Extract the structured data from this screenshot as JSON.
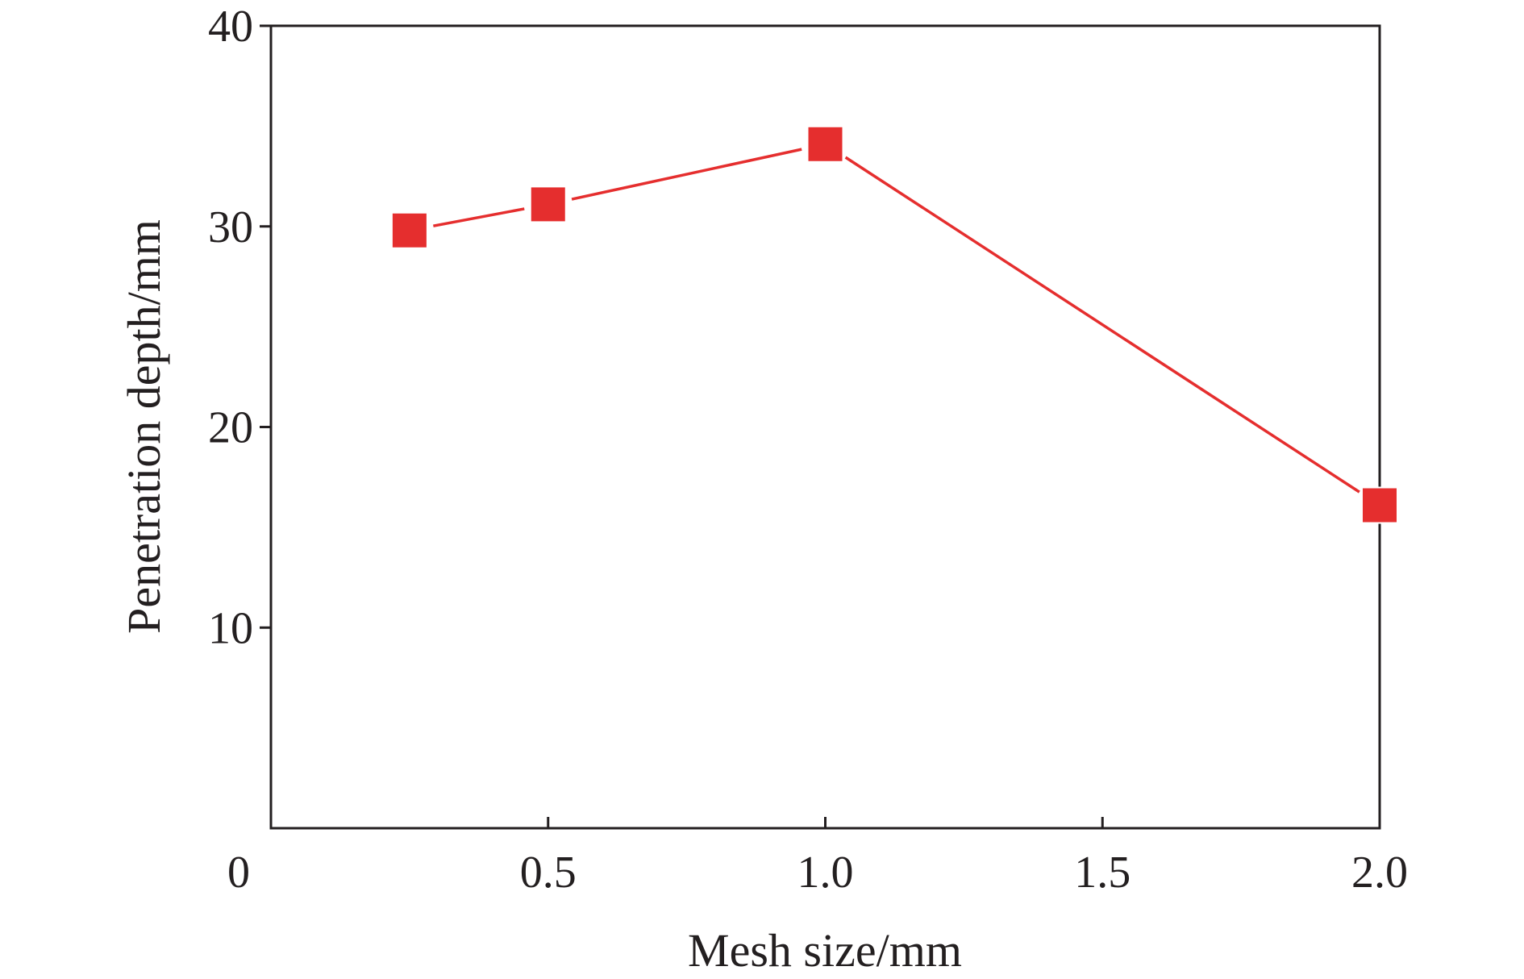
{
  "chart_data": {
    "type": "line",
    "title": "",
    "xlabel": "Mesh size/mm",
    "ylabel": "Penetration depth/mm",
    "xlim": [
      0,
      2.0
    ],
    "ylim": [
      0,
      40
    ],
    "x_ticks": [
      0.5,
      1.0,
      1.5,
      2.0
    ],
    "x_tick_labels": [
      "0.5",
      "1.0",
      "1.5",
      "2.0"
    ],
    "y_ticks": [
      10,
      20,
      30,
      40
    ],
    "y_tick_labels": [
      "10",
      "20",
      "30",
      "40"
    ],
    "origin_label": "0",
    "grid": false,
    "legend": "none",
    "series": [
      {
        "name": "",
        "color": "#e52e2e",
        "marker": "square",
        "x": [
          0.25,
          0.5,
          1.0,
          2.0
        ],
        "y": [
          29.8,
          31.1,
          34.1,
          16.1
        ]
      }
    ]
  }
}
